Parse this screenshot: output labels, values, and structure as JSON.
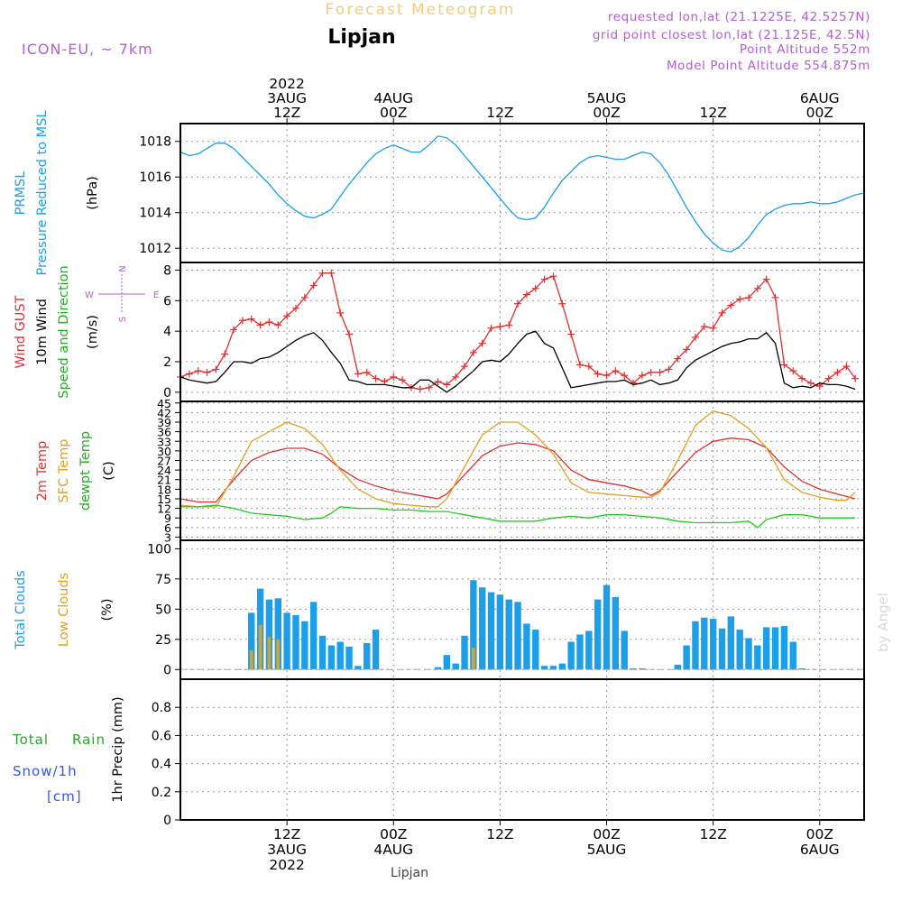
{
  "header": {
    "title": "Forecast Meteogram",
    "location": "Lipjan",
    "model": "ICON-EU, ~ 7km",
    "requested": "requested lon,lat (21.1225E, 42.5257N)",
    "gridpoint": "grid point closest lon,lat (21.125E, 42.5N)",
    "point_alt": "Point Altitude 552m",
    "model_alt": "Model Point Altitude 554.875m",
    "footer_location": "Lipjan",
    "watermark": "by Angel"
  },
  "time_axis": {
    "top_labels": [
      {
        "lines": [
          "2022",
          "3AUG",
          "12Z"
        ],
        "hour": 12
      },
      {
        "lines": [
          "4AUG",
          "00Z"
        ],
        "hour": 24
      },
      {
        "lines": [
          "12Z"
        ],
        "hour": 36
      },
      {
        "lines": [
          "5AUG",
          "00Z"
        ],
        "hour": 48
      },
      {
        "lines": [
          "12Z"
        ],
        "hour": 60
      },
      {
        "lines": [
          "6AUG",
          "00Z"
        ],
        "hour": 72
      }
    ],
    "bottom_labels": [
      {
        "lines": [
          "12Z",
          "3AUG",
          "2022"
        ],
        "hour": 12
      },
      {
        "lines": [
          "00Z",
          "4AUG"
        ],
        "hour": 24
      },
      {
        "lines": [
          "12Z"
        ],
        "hour": 36
      },
      {
        "lines": [
          "00Z",
          "5AUG"
        ],
        "hour": 48
      },
      {
        "lines": [
          "12Z"
        ],
        "hour": 60
      },
      {
        "lines": [
          "00Z",
          "6AUG"
        ],
        "hour": 72
      }
    ]
  },
  "chart_data": [
    {
      "panel": "pressure",
      "type": "line",
      "ylabels": [
        {
          "text": "PRMSL",
          "color": "#1a9fe8"
        },
        {
          "text": "Pressure Reduced to MSL",
          "color": "#1a9fe8"
        }
      ],
      "unit": "(hPa)",
      "ylim": [
        1011.2,
        1019.0
      ],
      "yticks": [
        1012,
        1014,
        1016,
        1018
      ],
      "grid": true,
      "series": [
        {
          "color": "#1a9fe8",
          "x": [
            0,
            1,
            2,
            3,
            4,
            5,
            6,
            7,
            8,
            9,
            10,
            11,
            12,
            13,
            14,
            15,
            16,
            17,
            18,
            19,
            20,
            21,
            22,
            23,
            24,
            25,
            26,
            27,
            28,
            29,
            30,
            31,
            32,
            33,
            34,
            35,
            36,
            37,
            38,
            39,
            40,
            41,
            42,
            43,
            44,
            45,
            46,
            47,
            48,
            49,
            50,
            51,
            52,
            53,
            54,
            55,
            56,
            57,
            58,
            59,
            60,
            61,
            62,
            63,
            64,
            65,
            66,
            67,
            68,
            69,
            70,
            71,
            72,
            73,
            74,
            75,
            76,
            77
          ],
          "values": [
            1017.4,
            1017.2,
            1017.3,
            1017.6,
            1017.9,
            1017.9,
            1017.6,
            1017.1,
            1016.6,
            1016.1,
            1015.6,
            1015.0,
            1014.5,
            1014.1,
            1013.8,
            1013.7,
            1013.9,
            1014.2,
            1014.9,
            1015.6,
            1016.2,
            1016.8,
            1017.3,
            1017.6,
            1017.8,
            1017.6,
            1017.4,
            1017.4,
            1017.8,
            1018.3,
            1018.2,
            1017.8,
            1017.2,
            1016.6,
            1016.0,
            1015.4,
            1014.8,
            1014.2,
            1013.7,
            1013.6,
            1013.7,
            1014.3,
            1015.1,
            1015.8,
            1016.3,
            1016.8,
            1017.1,
            1017.2,
            1017.1,
            1017.0,
            1017.0,
            1017.2,
            1017.4,
            1017.3,
            1016.8,
            1016.1,
            1015.2,
            1014.3,
            1013.5,
            1012.8,
            1012.3,
            1011.9,
            1011.8,
            1012.1,
            1012.6,
            1013.3,
            1013.9,
            1014.2,
            1014.4,
            1014.5,
            1014.5,
            1014.6,
            1014.5,
            1014.5,
            1014.6,
            1014.8,
            1015.0,
            1015.1
          ]
        }
      ]
    },
    {
      "panel": "wind",
      "type": "line",
      "ylabels": [
        {
          "text": "Wind GUST",
          "color": "#e03030"
        },
        {
          "text": "10m Wind",
          "color": "#000000"
        },
        {
          "text": "Speed and Direction",
          "color": "#22aa22"
        }
      ],
      "unit": "(m/s)",
      "compass": {
        "n": "N",
        "s": "S",
        "e": "E",
        "w": "W"
      },
      "ylim": [
        -0.6,
        8.5
      ],
      "yticks": [
        0,
        2,
        4,
        6,
        8
      ],
      "grid": true,
      "series": [
        {
          "name": "Wind GUST",
          "color": "#e03030",
          "marker": "+",
          "x": [
            0,
            1,
            2,
            3,
            4,
            5,
            6,
            7,
            8,
            9,
            10,
            11,
            12,
            13,
            14,
            15,
            16,
            17,
            18,
            19,
            20,
            21,
            22,
            23,
            24,
            25,
            26,
            27,
            28,
            29,
            30,
            31,
            32,
            33,
            34,
            35,
            36,
            37,
            38,
            39,
            40,
            41,
            42,
            43,
            44,
            45,
            46,
            47,
            48,
            49,
            50,
            51,
            52,
            53,
            54,
            55,
            56,
            57,
            58,
            59,
            60,
            61,
            62,
            63,
            64,
            65,
            66,
            67,
            68,
            69,
            70,
            71,
            72,
            73,
            74,
            75,
            76
          ],
          "values": [
            1.0,
            1.2,
            1.4,
            1.3,
            1.5,
            2.5,
            4.1,
            4.7,
            4.8,
            4.4,
            4.6,
            4.4,
            5.0,
            5.5,
            6.2,
            7.0,
            7.8,
            7.8,
            5.2,
            3.8,
            1.2,
            1.3,
            0.9,
            0.7,
            1.0,
            0.8,
            0.3,
            0.2,
            0.3,
            0.7,
            0.5,
            1.0,
            1.7,
            2.6,
            3.2,
            4.2,
            4.3,
            4.4,
            5.8,
            6.4,
            6.8,
            7.4,
            7.6,
            5.8,
            3.8,
            1.8,
            1.7,
            1.2,
            1.1,
            1.4,
            1.1,
            0.6,
            1.1,
            1.3,
            1.3,
            1.5,
            2.2,
            2.8,
            3.6,
            4.3,
            4.2,
            5.2,
            5.7,
            6.1,
            6.2,
            6.8,
            7.4,
            6.2,
            1.8,
            1.4,
            0.9,
            0.6,
            0.4,
            0.9,
            1.3,
            1.7,
            0.9
          ]
        },
        {
          "name": "10m Wind",
          "color": "#000000",
          "x": [
            0,
            1,
            2,
            3,
            4,
            5,
            6,
            7,
            8,
            9,
            10,
            11,
            12,
            13,
            14,
            15,
            16,
            17,
            18,
            19,
            20,
            21,
            22,
            23,
            24,
            25,
            26,
            27,
            28,
            29,
            30,
            31,
            32,
            33,
            34,
            35,
            36,
            37,
            38,
            39,
            40,
            41,
            42,
            43,
            44,
            45,
            46,
            47,
            48,
            49,
            50,
            51,
            52,
            53,
            54,
            55,
            56,
            57,
            58,
            59,
            60,
            61,
            62,
            63,
            64,
            65,
            66,
            67,
            68,
            69,
            70,
            71,
            72,
            73,
            74,
            75,
            76
          ],
          "values": [
            1.0,
            0.8,
            0.7,
            0.6,
            0.7,
            1.3,
            2.0,
            2.0,
            1.9,
            2.2,
            2.3,
            2.6,
            3.0,
            3.4,
            3.7,
            3.9,
            3.4,
            2.6,
            1.9,
            0.8,
            0.7,
            0.5,
            0.5,
            0.5,
            0.4,
            0.3,
            0.3,
            0.8,
            0.8,
            0.4,
            0.0,
            0.4,
            0.9,
            1.4,
            2.0,
            2.1,
            2.0,
            2.5,
            3.2,
            3.8,
            4.0,
            3.2,
            2.9,
            1.6,
            0.3,
            0.4,
            0.5,
            0.6,
            0.7,
            0.7,
            0.8,
            0.5,
            0.6,
            0.8,
            0.5,
            0.6,
            0.8,
            1.6,
            2.1,
            2.4,
            2.7,
            3.0,
            3.2,
            3.3,
            3.5,
            3.5,
            3.9,
            3.2,
            0.6,
            0.3,
            0.4,
            0.3,
            0.6,
            0.5,
            0.5,
            0.4,
            0.2
          ]
        }
      ]
    },
    {
      "panel": "temperature",
      "type": "line",
      "ylabels": [
        {
          "text": "2m Temp",
          "color": "#e03030"
        },
        {
          "text": "SFC Temp",
          "color": "#e0a020"
        },
        {
          "text": "dewpt Temp",
          "color": "#22aa22"
        }
      ],
      "unit": "(C)",
      "ylim": [
        2.0,
        45.5
      ],
      "yticks": [
        3,
        6,
        9,
        12,
        15,
        18,
        21,
        24,
        27,
        30,
        33,
        36,
        39,
        42,
        45
      ],
      "grid": true,
      "series": [
        {
          "name": "2m Temp",
          "color": "#e03030",
          "x": [
            0,
            2,
            4,
            6,
            8,
            10,
            12,
            14,
            16,
            18,
            20,
            22,
            24,
            26,
            28,
            29,
            30,
            32,
            34,
            36,
            38,
            40,
            42,
            44,
            46,
            48,
            50,
            52,
            53,
            54,
            56,
            58,
            60,
            62,
            64,
            66,
            68,
            70,
            72,
            74,
            76
          ],
          "values": [
            15.0,
            14.0,
            14.0,
            21.0,
            27.0,
            29.5,
            30.8,
            30.8,
            29.0,
            24.5,
            21.0,
            19.0,
            17.5,
            16.5,
            15.5,
            15.0,
            16.5,
            22.5,
            28.5,
            31.5,
            32.5,
            32.0,
            30.0,
            24.0,
            21.0,
            20.0,
            19.0,
            17.5,
            16.0,
            17.5,
            23.5,
            29.5,
            33.0,
            34.0,
            33.5,
            31.0,
            25.0,
            20.5,
            18.0,
            16.5,
            15.0
          ]
        },
        {
          "name": "SFC Temp",
          "color": "#e0a020",
          "x": [
            0,
            2,
            4,
            6,
            8,
            10,
            12,
            14,
            16,
            18,
            20,
            22,
            24,
            26,
            28,
            29,
            30,
            32,
            34,
            36,
            38,
            40,
            42,
            44,
            46,
            48,
            50,
            52,
            53,
            54,
            56,
            58,
            60,
            62,
            64,
            66,
            68,
            70,
            72,
            74,
            75,
            76
          ],
          "values": [
            13.0,
            12.5,
            12.5,
            22.0,
            33.0,
            36.0,
            39.0,
            37.0,
            32.0,
            24.0,
            18.0,
            15.0,
            13.5,
            13.0,
            12.5,
            12.5,
            15.0,
            25.0,
            35.0,
            39.0,
            39.0,
            35.0,
            29.0,
            20.0,
            17.0,
            16.5,
            16.0,
            15.5,
            15.5,
            17.0,
            27.0,
            38.0,
            42.5,
            41.0,
            37.0,
            31.0,
            21.0,
            17.0,
            15.5,
            14.5,
            14.5,
            17.0
          ]
        },
        {
          "name": "dewpt Temp",
          "color": "#22cc22",
          "x": [
            0,
            2,
            4,
            6,
            8,
            10,
            12,
            14,
            16,
            17,
            18,
            20,
            22,
            24,
            26,
            28,
            30,
            32,
            34,
            36,
            38,
            40,
            42,
            44,
            46,
            48,
            50,
            52,
            54,
            56,
            58,
            60,
            62,
            64,
            65,
            66,
            68,
            70,
            72,
            74,
            76
          ],
          "values": [
            12.5,
            12.5,
            13.0,
            12.0,
            10.5,
            10.0,
            9.5,
            8.5,
            9.0,
            10.5,
            12.5,
            12.0,
            12.0,
            11.5,
            11.5,
            11.0,
            11.0,
            10.0,
            9.0,
            8.0,
            8.0,
            8.0,
            9.0,
            9.5,
            9.0,
            10.0,
            10.0,
            9.5,
            9.0,
            8.0,
            7.5,
            7.5,
            7.5,
            8.0,
            6.0,
            8.5,
            10.0,
            10.0,
            9.0,
            9.0,
            9.0
          ]
        }
      ]
    },
    {
      "panel": "clouds",
      "type": "bar",
      "ylabels": [
        {
          "text": "Total Clouds",
          "color": "#1a9fe8"
        },
        {
          "text": "Low Clouds",
          "color": "#e0a020"
        }
      ],
      "unit": "(%)",
      "ylim": [
        -8,
        107
      ],
      "yticks": [
        0,
        25,
        50,
        75,
        100
      ],
      "grid": true,
      "series": [
        {
          "name": "Total Clouds",
          "color": "#1a9fe8",
          "x": [
            8,
            9,
            10,
            11,
            12,
            13,
            14,
            15,
            16,
            17,
            18,
            19,
            20,
            21,
            22,
            29,
            30,
            31,
            32,
            33,
            34,
            35,
            36,
            37,
            38,
            39,
            40,
            41,
            42,
            43,
            44,
            45,
            46,
            47,
            48,
            49,
            50,
            51,
            52,
            56,
            57,
            58,
            59,
            60,
            61,
            62,
            63,
            64,
            65,
            66,
            67,
            68,
            69,
            70
          ],
          "values": [
            47,
            67,
            58,
            59,
            47,
            45,
            40,
            56,
            28,
            20,
            23,
            19,
            3,
            22,
            33,
            2,
            12,
            5,
            28,
            74,
            68,
            64,
            62,
            58,
            56,
            38,
            33,
            3,
            3,
            5,
            23,
            29,
            32,
            58,
            70,
            60,
            32,
            1,
            1,
            4,
            20,
            40,
            43,
            42,
            34,
            44,
            33,
            26,
            20,
            35,
            35,
            36,
            23,
            1
          ]
        },
        {
          "name": "Low Clouds",
          "color": "#e0a020",
          "x": [
            8,
            9,
            10,
            11,
            33
          ],
          "values": [
            16,
            37,
            27,
            25,
            18
          ]
        }
      ]
    },
    {
      "panel": "precip",
      "type": "bar",
      "ylabels": [
        {
          "text": "Total Rain",
          "color": "#22aa22"
        },
        {
          "text": "Snow/1h",
          "color": "#3355ee"
        },
        {
          "text": "[cm]",
          "color": "#3355ee"
        }
      ],
      "unit": "1hr Precip (mm)",
      "ylim": [
        0,
        1.0
      ],
      "yticks": [
        0,
        0.2,
        0.4,
        0.6,
        0.8
      ],
      "grid": true,
      "series": []
    }
  ]
}
